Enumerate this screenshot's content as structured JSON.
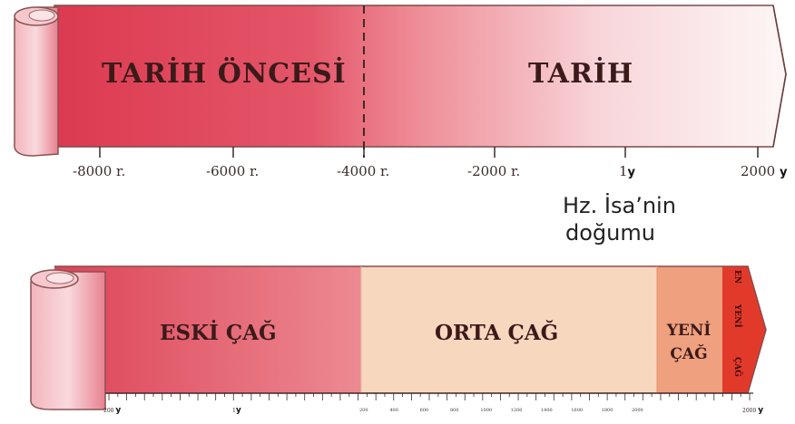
{
  "timeline1": {
    "era_prehistory": "TARİH ÖNCESİ",
    "era_history": "TARİH",
    "ticks": [
      {
        "label": "-8000 r.",
        "suffix": ""
      },
      {
        "label": "-6000 r.",
        "suffix": ""
      },
      {
        "label": "-4000 r.",
        "suffix": ""
      },
      {
        "label": "-2000 r.",
        "suffix": ""
      },
      {
        "label": "1",
        "suffix": "y"
      },
      {
        "label": "2000",
        "suffix": "y"
      }
    ],
    "note_line1": "Hz. İsa’nin",
    "note_line2": "doğumu"
  },
  "timeline2": {
    "era_ancient": "ESKİ ÇAĞ",
    "era_middle": "ORTA ÇAĞ",
    "era_new_line1": "YENİ",
    "era_new_line2": "ÇAĞ",
    "era_modern_line1": "EN",
    "era_modern_line2": "YENİ",
    "era_modern_line3": "ÇAĞ",
    "axis_start_label": "200",
    "axis_start_suffix": "y",
    "axis_one_label": "1",
    "axis_one_suffix": "y",
    "axis_end_label": "2000",
    "axis_end_suffix": "y",
    "minor_labels": [
      "200",
      "400",
      "600",
      "800",
      "1000",
      "1200",
      "1400",
      "1600",
      "1800",
      "2000"
    ]
  },
  "colors": {
    "deep_red": "#d9334a",
    "pale_pink": "#fbeaea",
    "light_peach": "#f7d2b8",
    "salmon": "#ee9a7a",
    "bright_red": "#e33d2b"
  }
}
